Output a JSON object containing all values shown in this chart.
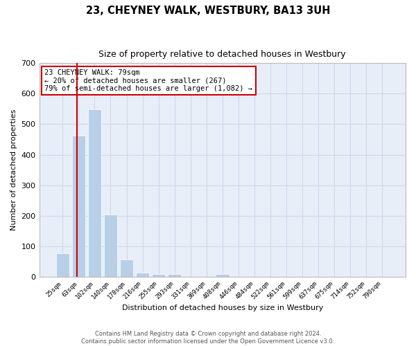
{
  "title": "23, CHEYNEY WALK, WESTBURY, BA13 3UH",
  "subtitle": "Size of property relative to detached houses in Westbury",
  "xlabel": "Distribution of detached houses by size in Westbury",
  "ylabel": "Number of detached properties",
  "footer_line1": "Contains HM Land Registry data © Crown copyright and database right 2024.",
  "footer_line2": "Contains public sector information licensed under the Open Government Licence v3.0.",
  "categories": [
    "25sqm",
    "63sqm",
    "102sqm",
    "140sqm",
    "178sqm",
    "216sqm",
    "255sqm",
    "293sqm",
    "331sqm",
    "369sqm",
    "408sqm",
    "446sqm",
    "484sqm",
    "522sqm",
    "561sqm",
    "599sqm",
    "637sqm",
    "675sqm",
    "714sqm",
    "752sqm",
    "790sqm"
  ],
  "values": [
    78,
    463,
    548,
    204,
    57,
    15,
    10,
    10,
    0,
    0,
    9,
    0,
    0,
    0,
    0,
    0,
    0,
    0,
    0,
    0,
    0
  ],
  "bar_color": "#b8cfe8",
  "grid_color": "#ccd8ea",
  "background_color": "#e8eef8",
  "property_line_color": "#cc0000",
  "annotation_text": "23 CHEYNEY WALK: 79sqm\n← 20% of detached houses are smaller (267)\n79% of semi-detached houses are larger (1,082) →",
  "annotation_box_edgecolor": "#cc0000",
  "ylim": [
    0,
    700
  ],
  "yticks": [
    0,
    100,
    200,
    300,
    400,
    500,
    600,
    700
  ],
  "property_sqm": 79,
  "bin_starts": [
    25,
    63,
    102,
    140,
    178,
    216,
    255,
    293,
    331,
    369,
    408,
    446,
    484,
    522,
    561,
    599,
    637,
    675,
    714,
    752,
    790
  ],
  "bin_size": 38
}
